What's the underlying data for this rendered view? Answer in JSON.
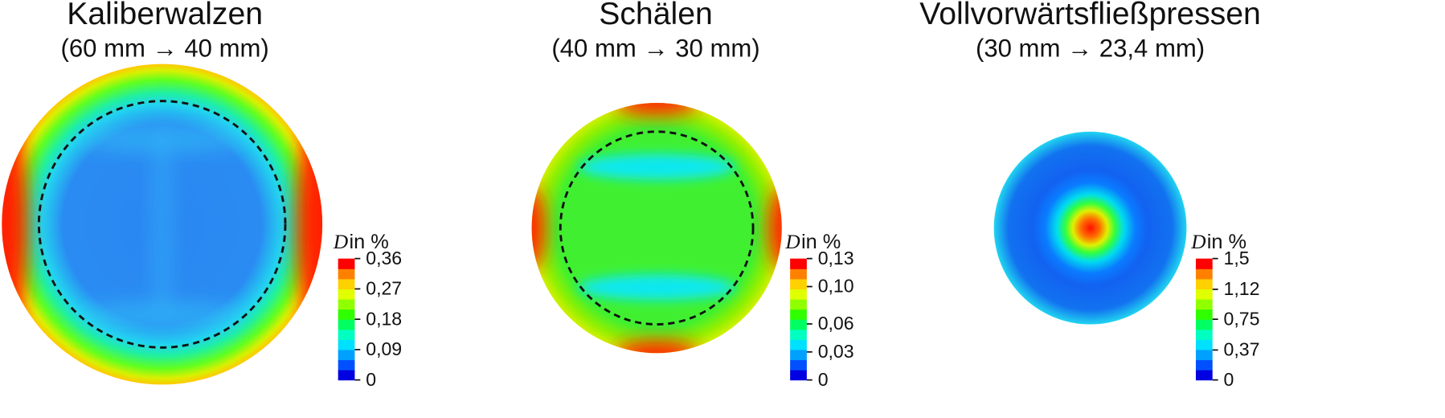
{
  "chart_data": [
    {
      "type": "contour",
      "title": "Kaliberwalzen",
      "subtitle": "(60 mm → 40 mm)",
      "zlabel_symbol": "D",
      "zlabel_text": "in %",
      "zlim": [
        0,
        0.36
      ],
      "zticks": [
        0,
        {
          "value": 0.09,
          "label": "0,09"
        },
        {
          "value": 0.18,
          "label": "0,18"
        },
        {
          "value": 0.27,
          "label": "0,27"
        },
        {
          "value": 0.36,
          "label": "0,36"
        }
      ]
    },
    {
      "type": "contour",
      "title": "Schälen",
      "subtitle": "(40 mm → 30 mm)",
      "zlabel_symbol": "D",
      "zlabel_text": "in %",
      "zlim": [
        0,
        0.13
      ],
      "zticks": [
        0,
        {
          "value": 0.03,
          "label": "0,03"
        },
        {
          "value": 0.06,
          "label": "0,06"
        },
        {
          "value": 0.1,
          "label": "0,10"
        },
        {
          "value": 0.13,
          "label": "0,13"
        }
      ]
    },
    {
      "type": "contour",
      "title": "Vollvorwärtsfließpressen",
      "subtitle": "(30 mm → 23,4 mm)",
      "zlabel_symbol": "D",
      "zlabel_text": "in %",
      "zlim": [
        0,
        1.5
      ],
      "zticks": [
        0,
        {
          "value": 0.37,
          "label": "0,37"
        },
        {
          "value": 0.75,
          "label": "0,75"
        },
        {
          "value": 1.12,
          "label": "1,12"
        },
        {
          "value": 1.5,
          "label": "1,5"
        }
      ]
    }
  ]
}
